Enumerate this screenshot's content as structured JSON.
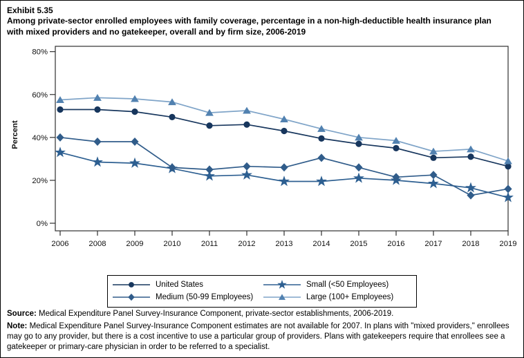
{
  "page": {
    "exhibit_label": "Exhibit 5.35",
    "title": "Among private-sector enrolled employees with family coverage, percentage in a non-high-deductible health insurance plan with mixed providers and no gatekeeper, overall and by firm size, 2006-2019"
  },
  "chart_data": {
    "type": "line",
    "title": "Percentage in a non-high-deductible health insurance plan with mixed providers and no gatekeeper, overall and by firm size, 2006-2019",
    "xlabel": "",
    "ylabel": "Percent",
    "ylim": [
      0,
      80
    ],
    "ytick_values": [
      0,
      20,
      40,
      60,
      80
    ],
    "ytick_labels": [
      "0%",
      "20%",
      "40%",
      "60%",
      "80%"
    ],
    "grid": false,
    "legend_position": "bottom",
    "categories": [
      "2006",
      "2008",
      "2009",
      "2010",
      "2011",
      "2012",
      "2013",
      "2014",
      "2015",
      "2016",
      "2017",
      "2018",
      "2019"
    ],
    "series": [
      {
        "name": "United States",
        "marker": "circle",
        "color": "#17365d",
        "line_color": "#17365d",
        "values": [
          53,
          53,
          52,
          49.5,
          45.5,
          46,
          43,
          39.5,
          37,
          35,
          30.5,
          31,
          26.5
        ]
      },
      {
        "name": "Small (<50 Employees)",
        "marker": "star",
        "color": "#2d5f91",
        "line_color": "#2d5f91",
        "values": [
          33,
          28.5,
          28,
          25.5,
          22,
          22.5,
          19.5,
          19.5,
          21,
          20,
          18.5,
          16.5,
          12
        ]
      },
      {
        "name": "Medium (50-99 Employees)",
        "marker": "diamond",
        "color": "#305c8a",
        "line_color": "#305c8a",
        "values": [
          40,
          38,
          38,
          26,
          25,
          26.5,
          26,
          30.5,
          26,
          21.5,
          22.5,
          13,
          16
        ]
      },
      {
        "name": "Large (100+ Employees)",
        "marker": "triangle",
        "color": "#5181b0",
        "line_color": "#7fa4c8",
        "values": [
          57.5,
          58.5,
          58,
          56.5,
          51.5,
          52.5,
          48.5,
          44,
          40,
          38.5,
          33.5,
          34.5,
          29
        ]
      }
    ],
    "axis_color": "#2e2e2e"
  },
  "footer": {
    "source_label": "Source:",
    "source_text": " Medical Expenditure Panel Survey-Insurance Component, private-sector establishments, 2006-2019.",
    "note_label": "Note:",
    "note_text": " Medical Expenditure Panel Survey-Insurance Component estimates are not available for 2007. In plans with \"mixed providers,\" enrollees may go to any provider, but there is a cost incentive to use a particular group of providers. Plans with gatekeepers require that enrollees see a gatekeeper or primary-care physician in order to be referred to a specialist."
  }
}
